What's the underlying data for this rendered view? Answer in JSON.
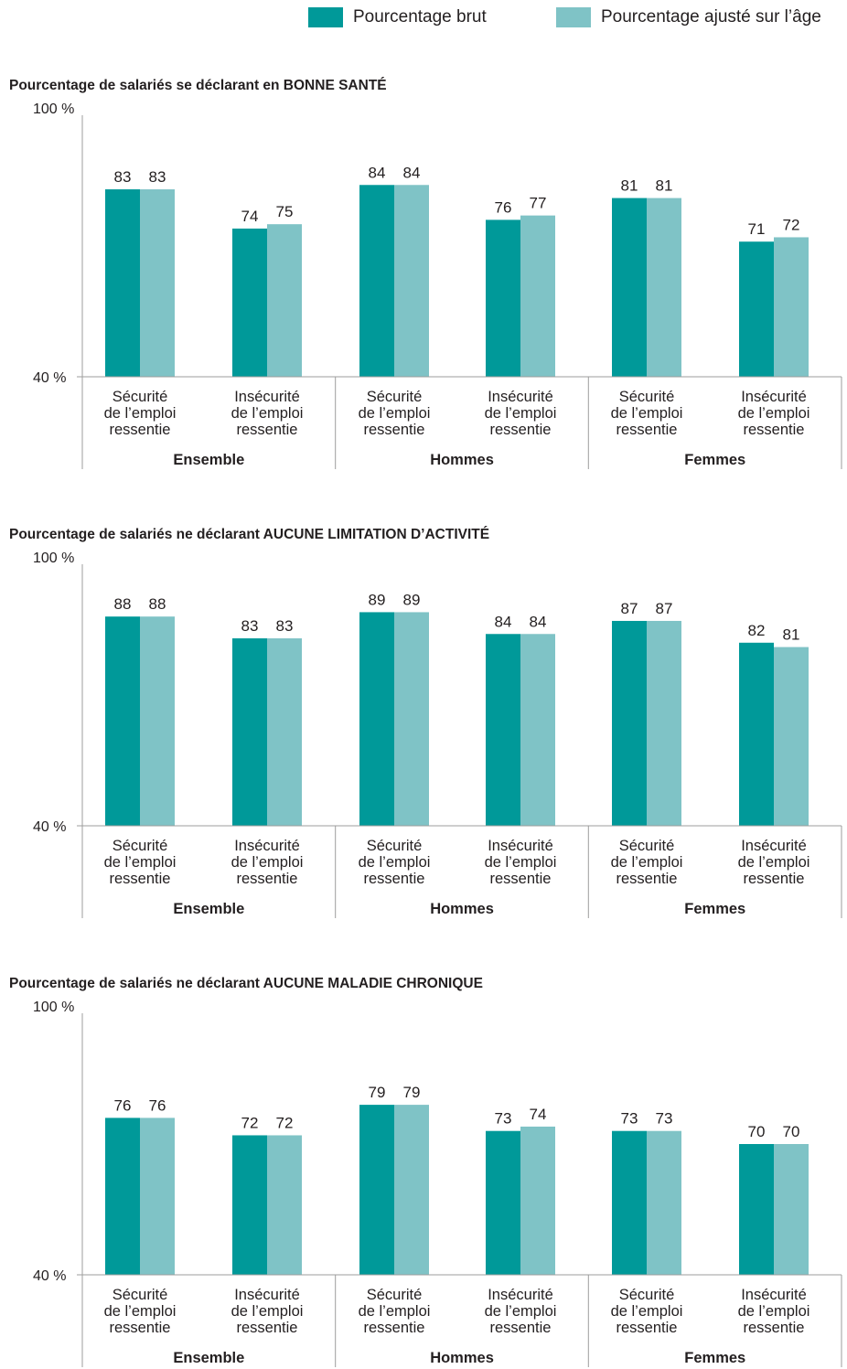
{
  "legend": {
    "brut_label": "Pourcentage brut",
    "ajuste_label": "Pourcentage ajusté sur l’âge"
  },
  "colors": {
    "brut": "#009999",
    "ajuste": "#7fc3c6",
    "axis": "#9d9d9c"
  },
  "chart_data": [
    {
      "type": "bar",
      "title": "Pourcentage de salariés se déclarant en BONNE SANTÉ",
      "ylim": [
        40,
        100
      ],
      "ytick_labels": [
        "100 %",
        "40 %"
      ],
      "groups": [
        "Ensemble",
        "Hommes",
        "Femmes"
      ],
      "categories": [
        "Sécurité de l’emploi ressentie",
        "Insécurité de l’emploi ressentie",
        "Sécurité de l’emploi ressentie",
        "Insécurité de l’emploi ressentie",
        "Sécurité de l’emploi ressentie",
        "Insécurité de l’emploi ressentie"
      ],
      "category_lines": [
        [
          "Sécurité",
          "de l’emploi",
          "ressentie"
        ],
        [
          "Insécurité",
          "de l’emploi",
          "ressentie"
        ],
        [
          "Sécurité",
          "de l’emploi",
          "ressentie"
        ],
        [
          "Insécurité",
          "de l’emploi",
          "ressentie"
        ],
        [
          "Sécurité",
          "de l’emploi",
          "ressentie"
        ],
        [
          "Insécurité",
          "de l’emploi",
          "ressentie"
        ]
      ],
      "series": [
        {
          "name": "Pourcentage brut",
          "values": [
            83,
            74,
            84,
            76,
            81,
            71
          ]
        },
        {
          "name": "Pourcentage ajusté sur l’âge",
          "values": [
            83,
            75,
            84,
            77,
            81,
            72
          ]
        }
      ]
    },
    {
      "type": "bar",
      "title": "Pourcentage de salariés ne déclarant AUCUNE LIMITATION D’ACTIVITÉ",
      "ylim": [
        40,
        100
      ],
      "ytick_labels": [
        "100 %",
        "40 %"
      ],
      "groups": [
        "Ensemble",
        "Hommes",
        "Femmes"
      ],
      "categories": [
        "Sécurité de l’emploi ressentie",
        "Insécurité de l’emploi ressentie",
        "Sécurité de l’emploi ressentie",
        "Insécurité de l’emploi ressentie",
        "Sécurité de l’emploi ressentie",
        "Insécurité de l’emploi ressentie"
      ],
      "category_lines": [
        [
          "Sécurité",
          "de l’emploi",
          "ressentie"
        ],
        [
          "Insécurité",
          "de l’emploi",
          "ressentie"
        ],
        [
          "Sécurité",
          "de l’emploi",
          "ressentie"
        ],
        [
          "Insécurité",
          "de l’emploi",
          "ressentie"
        ],
        [
          "Sécurité",
          "de l’emploi",
          "ressentie"
        ],
        [
          "Insécurité",
          "de l’emploi",
          "ressentie"
        ]
      ],
      "series": [
        {
          "name": "Pourcentage brut",
          "values": [
            88,
            83,
            89,
            84,
            87,
            82
          ]
        },
        {
          "name": "Pourcentage ajusté sur l’âge",
          "values": [
            88,
            83,
            89,
            84,
            87,
            81
          ]
        }
      ]
    },
    {
      "type": "bar",
      "title": "Pourcentage de salariés ne déclarant AUCUNE MALADIE CHRONIQUE",
      "ylim": [
        40,
        100
      ],
      "ytick_labels": [
        "100 %",
        "40 %"
      ],
      "groups": [
        "Ensemble",
        "Hommes",
        "Femmes"
      ],
      "categories": [
        "Sécurité de l’emploi ressentie",
        "Insécurité de l’emploi ressentie",
        "Sécurité de l’emploi ressentie",
        "Insécurité de l’emploi ressentie",
        "Sécurité de l’emploi ressentie",
        "Insécurité de l’emploi ressentie"
      ],
      "category_lines": [
        [
          "Sécurité",
          "de l’emploi",
          "ressentie"
        ],
        [
          "Insécurité",
          "de l’emploi",
          "ressentie"
        ],
        [
          "Sécurité",
          "de l’emploi",
          "ressentie"
        ],
        [
          "Insécurité",
          "de l’emploi",
          "ressentie"
        ],
        [
          "Sécurité",
          "de l’emploi",
          "ressentie"
        ],
        [
          "Insécurité",
          "de l’emploi",
          "ressentie"
        ]
      ],
      "series": [
        {
          "name": "Pourcentage brut",
          "values": [
            76,
            72,
            79,
            73,
            73,
            70
          ]
        },
        {
          "name": "Pourcentage ajusté sur l’âge",
          "values": [
            76,
            72,
            79,
            74,
            73,
            70
          ]
        }
      ]
    }
  ]
}
